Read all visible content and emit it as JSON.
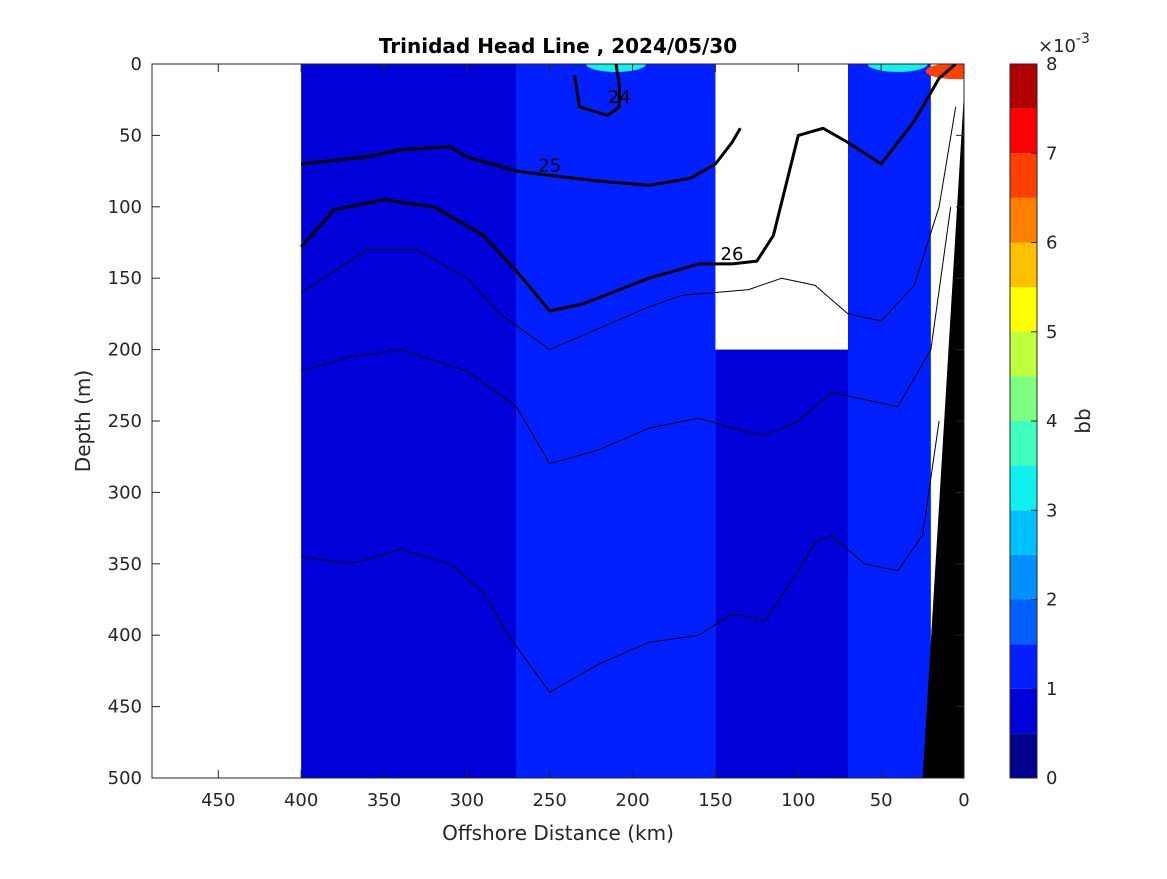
{
  "chart_data": {
    "type": "contour",
    "title": "Trinidad Head Line , 2024/05/30",
    "xlabel": "Offshore Distance (km)",
    "ylabel": "Depth (m)",
    "x_reversed": true,
    "y_reversed": true,
    "xlim": [
      490,
      0
    ],
    "ylim": [
      0,
      500
    ],
    "xticks": [
      450,
      400,
      350,
      300,
      250,
      200,
      150,
      100,
      50,
      0
    ],
    "yticks": [
      0,
      50,
      100,
      150,
      200,
      250,
      300,
      350,
      400,
      450,
      500
    ],
    "data_extent_x": [
      400,
      0
    ],
    "colorbar": {
      "label": "bb",
      "multiplier": "×10",
      "exponent": "-3",
      "ticks": [
        0,
        1,
        2,
        3,
        4,
        5,
        6,
        7,
        8
      ],
      "levels": [
        0,
        0.5,
        1,
        1.5,
        2,
        2.5,
        3,
        3.5,
        4,
        4.5,
        5,
        5.5,
        6,
        6.5,
        7,
        7.5,
        8
      ],
      "colors": [
        "#00008f",
        "#0000d9",
        "#0020ff",
        "#0060ff",
        "#0090ff",
        "#00c0ff",
        "#10f0ef",
        "#40ffbf",
        "#7fff80",
        "#bfff40",
        "#ffff00",
        "#ffc000",
        "#ff8000",
        "#ff4000",
        "#ff0000",
        "#b00000"
      ]
    },
    "fill_regions": [
      {
        "value": 0.8,
        "x0": 400,
        "x1": 270,
        "depth": [
          0,
          500
        ]
      },
      {
        "value": 1.1,
        "x0": 270,
        "x1": 150,
        "depth": [
          0,
          500
        ]
      },
      {
        "value": 0.8,
        "x0": 150,
        "x1": 70,
        "depth": [
          200,
          500
        ]
      },
      {
        "value": 1.1,
        "x0": 70,
        "x1": 20,
        "depth": [
          0,
          500
        ]
      }
    ],
    "surface_features": [
      {
        "x": 210,
        "depth": 0,
        "value": 3.2
      },
      {
        "x": 40,
        "depth": 0,
        "value": 3.0
      },
      {
        "x": 5,
        "depth": 5,
        "value": 6.5
      }
    ],
    "bottom": {
      "color": "#000000",
      "x": [
        0,
        0,
        25
      ],
      "depth": [
        20,
        500,
        500
      ]
    },
    "isopycnals": [
      {
        "label": "24",
        "bold": true,
        "x": [
          235,
          232,
          215,
          208,
          208,
          210
        ],
        "y": [
          8,
          30,
          36,
          30,
          15,
          0
        ]
      },
      {
        "label": "25",
        "bold": true,
        "x": [
          400,
          360,
          340,
          310,
          300,
          270,
          250,
          220,
          190,
          165,
          150,
          140,
          135
        ],
        "y": [
          70,
          65,
          60,
          58,
          65,
          75,
          78,
          82,
          85,
          80,
          70,
          55,
          45
        ]
      },
      {
        "label": "26",
        "bold": true,
        "x": [
          400,
          380,
          350,
          320,
          290,
          270,
          250,
          230,
          190,
          160,
          140,
          125,
          115,
          100,
          85,
          70,
          50,
          30,
          15,
          5
        ],
        "y": [
          128,
          102,
          95,
          100,
          120,
          145,
          173,
          168,
          150,
          140,
          140,
          138,
          120,
          50,
          45,
          55,
          70,
          40,
          10,
          0
        ]
      },
      {
        "label": "",
        "bold": false,
        "x": [
          400,
          360,
          330,
          300,
          280,
          250,
          220,
          190,
          170,
          150,
          130,
          110,
          90,
          70,
          50,
          30,
          15,
          5
        ],
        "y": [
          160,
          130,
          130,
          150,
          175,
          200,
          185,
          170,
          162,
          160,
          158,
          150,
          155,
          175,
          180,
          155,
          100,
          30
        ]
      },
      {
        "label": "",
        "bold": false,
        "x": [
          400,
          370,
          340,
          300,
          270,
          250,
          220,
          190,
          160,
          140,
          120,
          100,
          80,
          60,
          40,
          20,
          8
        ],
        "y": [
          215,
          205,
          200,
          215,
          240,
          280,
          270,
          255,
          248,
          255,
          260,
          250,
          230,
          235,
          240,
          200,
          100
        ]
      },
      {
        "label": "",
        "bold": false,
        "x": [
          400,
          370,
          340,
          310,
          290,
          275,
          250,
          220,
          190,
          160,
          140,
          120,
          100,
          90,
          80,
          60,
          40,
          25,
          15
        ],
        "y": [
          345,
          350,
          340,
          350,
          370,
          400,
          440,
          420,
          405,
          400,
          385,
          390,
          355,
          335,
          330,
          350,
          355,
          330,
          250
        ]
      }
    ]
  }
}
